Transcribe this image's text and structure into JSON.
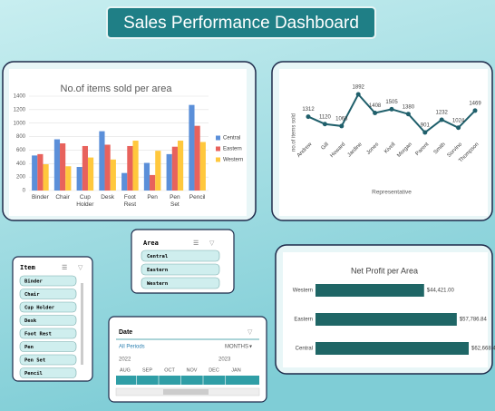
{
  "title": "Sales Performance Dashboard",
  "chart_data": [
    {
      "type": "bar",
      "title": "No.of items sold per area",
      "categories": [
        "Binder",
        "Chair",
        "Cup Holder",
        "Desk",
        "Foot Rest",
        "Pen",
        "Pen Set",
        "Pencil"
      ],
      "series": [
        {
          "name": "Central",
          "color": "#5b8fd9",
          "values": [
            520,
            760,
            350,
            880,
            260,
            410,
            540,
            1270
          ]
        },
        {
          "name": "Eastern",
          "color": "#e8625c",
          "values": [
            540,
            700,
            660,
            680,
            660,
            230,
            650,
            960
          ]
        },
        {
          "name": "Western",
          "color": "#ffc83d",
          "values": [
            390,
            360,
            490,
            460,
            740,
            590,
            740,
            720
          ]
        }
      ],
      "ylim": [
        0,
        1400
      ],
      "yticks": [
        0,
        200,
        400,
        600,
        800,
        1000,
        1200,
        1400
      ],
      "grid": true,
      "legend": "right"
    },
    {
      "type": "line",
      "x_label": "Representative",
      "y_label": "no.of items sold",
      "categories": [
        "Andrew",
        "Gill",
        "Howard",
        "Jardine",
        "Jones",
        "Kivell",
        "Morgan",
        "Parent",
        "Smith",
        "Sorvino",
        "Thompson"
      ],
      "values": [
        1312,
        1120,
        1068,
        1892,
        1408,
        1505,
        1380,
        901,
        1232,
        1024,
        1469
      ],
      "color": "#1f5f6b"
    },
    {
      "type": "barh",
      "title": "Net Profit per Area",
      "categories": [
        "Western",
        "Eastern",
        "Central"
      ],
      "values": [
        44421.0,
        57786.84,
        62668.47
      ],
      "value_labels": [
        "$44,421.00",
        "$57,786.84",
        "$62,668.47"
      ],
      "color": "#1f6666"
    }
  ],
  "slicers": {
    "item": {
      "title": "Item",
      "items": [
        "Binder",
        "Chair",
        "Cup Holder",
        "Desk",
        "Foot Rest",
        "Pen",
        "Pen Set",
        "Pencil"
      ]
    },
    "area": {
      "title": "Area",
      "items": [
        "Central",
        "Eastern",
        "Western"
      ]
    },
    "date": {
      "title": "Date",
      "all_periods": "All Periods",
      "level": "MONTHS",
      "years": [
        "2022",
        "2023"
      ],
      "months": [
        "AUG",
        "SEP",
        "OCT",
        "NOV",
        "DEC",
        "JAN"
      ]
    }
  }
}
